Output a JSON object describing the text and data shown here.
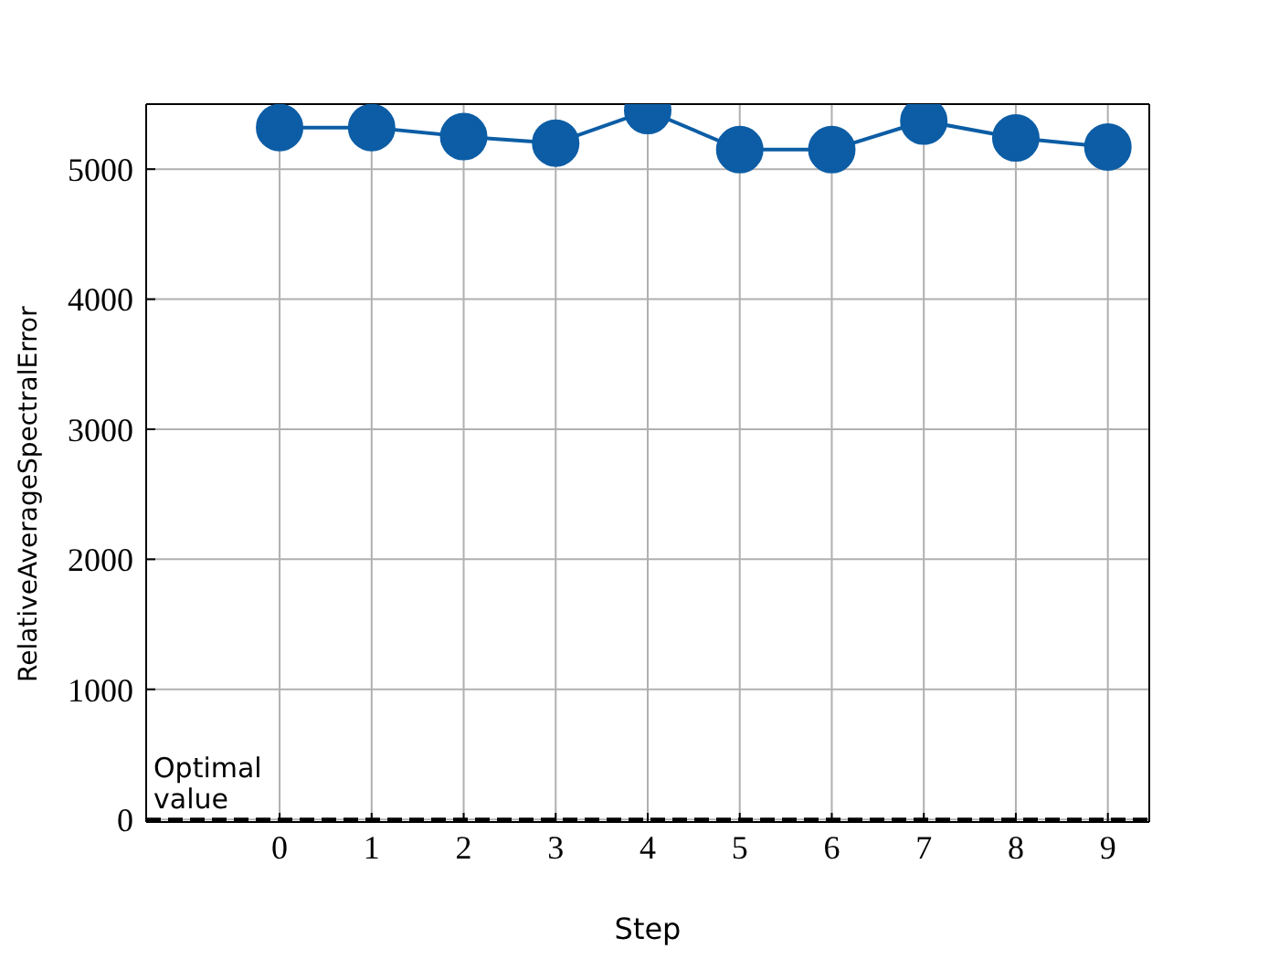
{
  "chart_data": {
    "type": "line",
    "xlabel": "Step",
    "ylabel": "RelativeAverageSpectralError",
    "x": [
      0,
      1,
      2,
      3,
      4,
      5,
      6,
      7,
      8,
      9
    ],
    "series": [
      {
        "color": "#0c5da5",
        "values": [
          5320,
          5320,
          5250,
          5200,
          5450,
          5150,
          5150,
          5370,
          5240,
          5170
        ]
      }
    ],
    "xlim": [
      -1.45,
      9.45
    ],
    "xticks": [
      0,
      1,
      2,
      3,
      4,
      5,
      6,
      7,
      8,
      9
    ],
    "ylim": [
      -20,
      5500
    ],
    "yticks": [
      0,
      1000,
      2000,
      3000,
      4000,
      5000
    ],
    "ref_lines": [
      {
        "axis": "y",
        "value": 0,
        "label": "Optimal value",
        "color": "#000000",
        "line_style": "dashed"
      }
    ],
    "grid": true,
    "marker": "circle",
    "line_style": "solid"
  }
}
